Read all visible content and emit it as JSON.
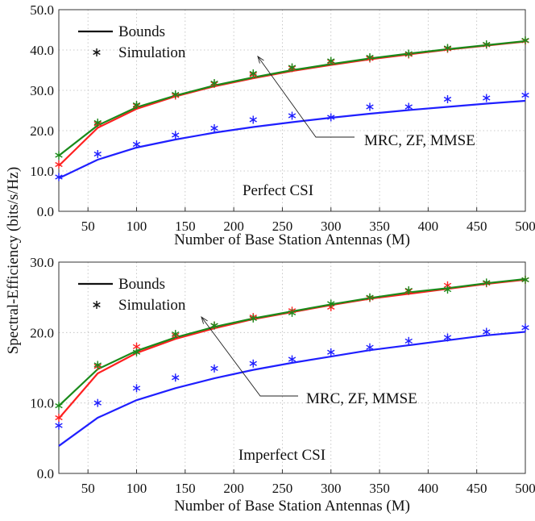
{
  "chart_data": [
    {
      "type": "line",
      "annotation_text": "Perfect CSI",
      "xlabel": "Number of Base Station Antennas (M)",
      "ylabel": "Spectral-Efficiency (bits/s/Hz)",
      "xlim": [
        20,
        500
      ],
      "ylim": [
        0,
        50
      ],
      "xticks": [
        "50",
        "100",
        "150",
        "200",
        "250",
        "300",
        "350",
        "400",
        "450",
        "500"
      ],
      "yticks": [
        "0.0",
        "10.0",
        "20.0",
        "30.0",
        "40.0",
        "50.0"
      ],
      "grid": true,
      "legend": {
        "position": "top-left",
        "entries": [
          "Bounds",
          "Simulation"
        ]
      },
      "arrow_label": "MRC, ZF, MMSE",
      "x": [
        20,
        60,
        100,
        140,
        180,
        220,
        260,
        300,
        340,
        380,
        420,
        460,
        500
      ],
      "series": [
        {
          "color": "#1f1fff",
          "style": "line",
          "values": [
            8.2,
            12.8,
            15.8,
            17.8,
            19.5,
            20.9,
            22.1,
            23.2,
            24.2,
            25.1,
            25.9,
            26.7,
            27.4
          ]
        },
        {
          "color": "#ff2020",
          "style": "line",
          "values": [
            11.3,
            20.7,
            25.4,
            28.5,
            31.0,
            33.0,
            34.8,
            36.3,
            37.7,
            38.9,
            40.1,
            41.1,
            42.1
          ]
        },
        {
          "color": "#1a8a1a",
          "style": "line",
          "values": [
            13.8,
            21.3,
            25.8,
            28.7,
            31.2,
            33.2,
            35.0,
            36.5,
            37.9,
            39.1,
            40.2,
            41.2,
            42.2
          ]
        },
        {
          "color": "#1f1fff",
          "style": "marker",
          "values": [
            8.5,
            14.2,
            16.6,
            18.9,
            20.6,
            22.7,
            23.7,
            23.3,
            25.9,
            25.9,
            27.8,
            28.1,
            28.8
          ]
        },
        {
          "color": "#ff2020",
          "style": "marker",
          "values": [
            11.6,
            21.7,
            26.2,
            28.7,
            31.6,
            33.9,
            35.5,
            37.1,
            37.9,
            38.9,
            40.3,
            41.3,
            42.3
          ]
        },
        {
          "color": "#1a8a1a",
          "style": "marker",
          "values": [
            13.9,
            22.0,
            26.4,
            29.0,
            31.8,
            34.2,
            35.7,
            37.3,
            38.2,
            39.1,
            40.5,
            41.4,
            42.4
          ]
        }
      ]
    },
    {
      "type": "line",
      "annotation_text": "Imperfect CSI",
      "xlabel": "Number of Base Station Antennas (M)",
      "xlim": [
        20,
        500
      ],
      "ylim": [
        0,
        30
      ],
      "xticks": [
        "50",
        "100",
        "150",
        "200",
        "250",
        "300",
        "350",
        "400",
        "450",
        "500"
      ],
      "yticks": [
        "0.0",
        "10.0",
        "20.0",
        "30.0"
      ],
      "grid": true,
      "legend": {
        "position": "top-left",
        "entries": [
          "Bounds",
          "Simulation"
        ]
      },
      "arrow_label": "MRC, ZF, MMSE",
      "x": [
        20,
        60,
        100,
        140,
        180,
        220,
        260,
        300,
        340,
        380,
        420,
        460,
        500
      ],
      "series": [
        {
          "color": "#1f1fff",
          "style": "line",
          "values": [
            3.9,
            7.9,
            10.4,
            12.1,
            13.5,
            14.7,
            15.7,
            16.6,
            17.5,
            18.2,
            18.9,
            19.6,
            20.1
          ]
        },
        {
          "color": "#ff2020",
          "style": "line",
          "values": [
            7.8,
            14.2,
            17.1,
            19.1,
            20.6,
            21.9,
            22.9,
            23.9,
            24.8,
            25.5,
            26.2,
            26.9,
            27.5
          ]
        },
        {
          "color": "#1a8a1a",
          "style": "line",
          "values": [
            9.6,
            14.8,
            17.4,
            19.3,
            20.8,
            22.0,
            23.0,
            24.0,
            24.9,
            25.7,
            26.3,
            27.0,
            27.6
          ]
        },
        {
          "color": "#1f1fff",
          "style": "marker",
          "values": [
            6.8,
            10.0,
            12.1,
            13.6,
            14.9,
            15.6,
            16.2,
            17.2,
            17.9,
            18.8,
            19.3,
            20.1,
            20.7
          ]
        },
        {
          "color": "#ff2020",
          "style": "marker",
          "values": [
            7.9,
            15.2,
            18.0,
            19.6,
            21.0,
            22.2,
            23.1,
            23.6,
            24.9,
            25.9,
            26.7,
            27.0,
            27.5
          ]
        },
        {
          "color": "#1a8a1a",
          "style": "marker",
          "values": [
            9.6,
            15.4,
            17.2,
            19.8,
            21.0,
            22.0,
            22.8,
            24.1,
            25.0,
            26.0,
            26.1,
            27.1,
            27.5
          ]
        }
      ]
    }
  ]
}
